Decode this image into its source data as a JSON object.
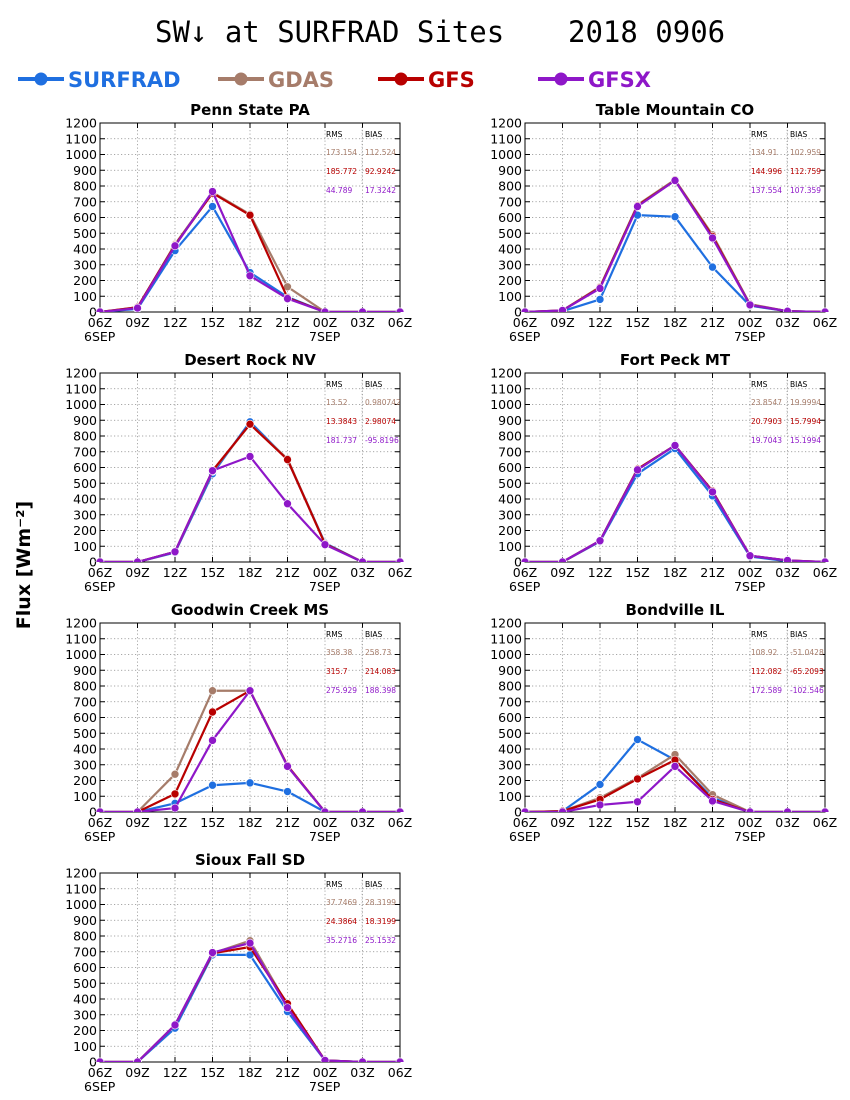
{
  "header": {
    "title": "SW↓ at SURFRAD Sites",
    "date": "2018 0906"
  },
  "legend": [
    {
      "name": "SURFRAD",
      "color": "#1f6fe0"
    },
    {
      "name": "GDAS",
      "color": "#a67c6a"
    },
    {
      "name": "GFS",
      "color": "#b80000"
    },
    {
      "name": "GFSX",
      "color": "#8e17c8"
    }
  ],
  "stats_headers": [
    "RMS",
    "BIAS"
  ],
  "chart_data": [
    {
      "type": "line",
      "title": "Penn State PA",
      "categories": [
        "06Z",
        "09Z",
        "12Z",
        "15Z",
        "18Z",
        "21Z",
        "00Z",
        "03Z",
        "06Z"
      ],
      "day_labels": [
        "6SEP",
        "7SEP"
      ],
      "ylabel": "Flux [Wm⁻²]",
      "ylim": [
        0,
        1200
      ],
      "yticks": [
        0,
        100,
        200,
        300,
        400,
        500,
        600,
        700,
        800,
        900,
        1000,
        1100,
        1200
      ],
      "grid": true,
      "series": [
        {
          "name": "SURFRAD",
          "color": "#1f6fe0",
          "values": [
            0,
            20,
            390,
            670,
            250,
            95,
            0,
            0,
            0
          ]
        },
        {
          "name": "GDAS",
          "color": "#a67c6a",
          "values": [
            0,
            30,
            430,
            760,
            620,
            160,
            0,
            0,
            0
          ]
        },
        {
          "name": "GFS",
          "color": "#b80000",
          "values": [
            0,
            30,
            425,
            755,
            615,
            90,
            0,
            0,
            0
          ]
        },
        {
          "name": "GFSX",
          "color": "#8e17c8",
          "values": [
            0,
            25,
            420,
            765,
            230,
            85,
            0,
            0,
            0
          ]
        }
      ],
      "stats": [
        {
          "series": "GDAS",
          "rms": "173.154",
          "bias": "112.524"
        },
        {
          "series": "GFS",
          "rms": "185.772",
          "bias": "92.9242"
        },
        {
          "series": "GFSX",
          "rms": "44.789",
          "bias": "17.3242"
        }
      ]
    },
    {
      "type": "line",
      "title": "Table Mountain CO",
      "categories": [
        "06Z",
        "09Z",
        "12Z",
        "15Z",
        "18Z",
        "21Z",
        "00Z",
        "03Z",
        "06Z"
      ],
      "day_labels": [
        "6SEP",
        "7SEP"
      ],
      "ylim": [
        0,
        1200
      ],
      "yticks": [
        0,
        100,
        200,
        300,
        400,
        500,
        600,
        700,
        800,
        900,
        1000,
        1100,
        1200
      ],
      "grid": true,
      "series": [
        {
          "name": "SURFRAD",
          "color": "#1f6fe0",
          "values": [
            0,
            5,
            80,
            615,
            605,
            285,
            40,
            5,
            0
          ]
        },
        {
          "name": "GDAS",
          "color": "#a67c6a",
          "values": [
            0,
            10,
            160,
            680,
            840,
            490,
            50,
            5,
            0
          ]
        },
        {
          "name": "GFS",
          "color": "#b80000",
          "values": [
            0,
            10,
            155,
            675,
            835,
            480,
            45,
            5,
            0
          ]
        },
        {
          "name": "GFSX",
          "color": "#8e17c8",
          "values": [
            0,
            10,
            150,
            670,
            835,
            470,
            45,
            5,
            0
          ]
        }
      ],
      "stats": [
        {
          "series": "GDAS",
          "rms": "134.91",
          "bias": "102.959"
        },
        {
          "series": "GFS",
          "rms": "144.996",
          "bias": "112.759"
        },
        {
          "series": "GFSX",
          "rms": "137.554",
          "bias": "107.359"
        }
      ]
    },
    {
      "type": "line",
      "title": "Desert Rock NV",
      "categories": [
        "06Z",
        "09Z",
        "12Z",
        "15Z",
        "18Z",
        "21Z",
        "00Z",
        "03Z",
        "06Z"
      ],
      "day_labels": [
        "6SEP",
        "7SEP"
      ],
      "ylim": [
        0,
        1200
      ],
      "yticks": [
        0,
        100,
        200,
        300,
        400,
        500,
        600,
        700,
        800,
        900,
        1000,
        1100,
        1200
      ],
      "grid": true,
      "series": [
        {
          "name": "SURFRAD",
          "color": "#1f6fe0",
          "values": [
            0,
            0,
            60,
            560,
            890,
            650,
            120,
            0,
            0
          ]
        },
        {
          "name": "GDAS",
          "color": "#a67c6a",
          "values": [
            0,
            0,
            65,
            575,
            875,
            655,
            115,
            0,
            0
          ]
        },
        {
          "name": "GFS",
          "color": "#b80000",
          "values": [
            0,
            0,
            65,
            580,
            875,
            650,
            115,
            0,
            0
          ]
        },
        {
          "name": "GFSX",
          "color": "#8e17c8",
          "values": [
            0,
            0,
            65,
            580,
            670,
            370,
            110,
            0,
            0
          ]
        }
      ],
      "stats": [
        {
          "series": "GDAS",
          "rms": "13.52",
          "bias": "0.980742"
        },
        {
          "series": "GFS",
          "rms": "13.3843",
          "bias": "2.98074"
        },
        {
          "series": "GFSX",
          "rms": "181.737",
          "bias": "-95.8196"
        }
      ]
    },
    {
      "type": "line",
      "title": "Fort Peck MT",
      "categories": [
        "06Z",
        "09Z",
        "12Z",
        "15Z",
        "18Z",
        "21Z",
        "00Z",
        "03Z",
        "06Z"
      ],
      "day_labels": [
        "6SEP",
        "7SEP"
      ],
      "ylim": [
        0,
        1200
      ],
      "yticks": [
        0,
        100,
        200,
        300,
        400,
        500,
        600,
        700,
        800,
        900,
        1000,
        1100,
        1200
      ],
      "grid": true,
      "series": [
        {
          "name": "SURFRAD",
          "color": "#1f6fe0",
          "values": [
            0,
            0,
            130,
            560,
            720,
            420,
            35,
            5,
            0
          ]
        },
        {
          "name": "GDAS",
          "color": "#a67c6a",
          "values": [
            0,
            0,
            135,
            590,
            740,
            450,
            40,
            10,
            0
          ]
        },
        {
          "name": "GFS",
          "color": "#b80000",
          "values": [
            0,
            0,
            135,
            590,
            740,
            450,
            40,
            10,
            0
          ]
        },
        {
          "name": "GFSX",
          "color": "#8e17c8",
          "values": [
            0,
            0,
            135,
            585,
            740,
            445,
            40,
            10,
            0
          ]
        }
      ],
      "stats": [
        {
          "series": "GDAS",
          "rms": "23.8547",
          "bias": "19.9994"
        },
        {
          "series": "GFS",
          "rms": "20.7903",
          "bias": "15.7994"
        },
        {
          "series": "GFSX",
          "rms": "19.7043",
          "bias": "15.1994"
        }
      ]
    },
    {
      "type": "line",
      "title": "Goodwin Creek MS",
      "categories": [
        "06Z",
        "09Z",
        "12Z",
        "15Z",
        "18Z",
        "21Z",
        "00Z",
        "03Z",
        "06Z"
      ],
      "day_labels": [
        "6SEP",
        "7SEP"
      ],
      "ylim": [
        0,
        1200
      ],
      "yticks": [
        0,
        100,
        200,
        300,
        400,
        500,
        600,
        700,
        800,
        900,
        1000,
        1100,
        1200
      ],
      "grid": true,
      "series": [
        {
          "name": "SURFRAD",
          "color": "#1f6fe0",
          "values": [
            0,
            0,
            55,
            170,
            185,
            130,
            0,
            0,
            0
          ]
        },
        {
          "name": "GDAS",
          "color": "#a67c6a",
          "values": [
            0,
            0,
            240,
            770,
            770,
            290,
            0,
            0,
            0
          ]
        },
        {
          "name": "GFS",
          "color": "#b80000",
          "values": [
            0,
            0,
            115,
            635,
            770,
            295,
            0,
            0,
            0
          ]
        },
        {
          "name": "GFSX",
          "color": "#8e17c8",
          "values": [
            0,
            0,
            25,
            455,
            770,
            290,
            0,
            0,
            0
          ]
        }
      ],
      "stats": [
        {
          "series": "GDAS",
          "rms": "358.38",
          "bias": "258.73"
        },
        {
          "series": "GFS",
          "rms": "315.7",
          "bias": "214.083"
        },
        {
          "series": "GFSX",
          "rms": "275.929",
          "bias": "188.398"
        }
      ]
    },
    {
      "type": "line",
      "title": "Bondville IL",
      "categories": [
        "06Z",
        "09Z",
        "12Z",
        "15Z",
        "18Z",
        "21Z",
        "00Z",
        "03Z",
        "06Z"
      ],
      "day_labels": [
        "6SEP",
        "7SEP"
      ],
      "ylim": [
        0,
        1200
      ],
      "yticks": [
        0,
        100,
        200,
        300,
        400,
        500,
        600,
        700,
        800,
        900,
        1000,
        1100,
        1200
      ],
      "grid": true,
      "series": [
        {
          "name": "SURFRAD",
          "color": "#1f6fe0",
          "values": [
            0,
            5,
            175,
            460,
            330,
            90,
            0,
            0,
            0
          ]
        },
        {
          "name": "GDAS",
          "color": "#a67c6a",
          "values": [
            0,
            5,
            90,
            215,
            365,
            110,
            0,
            0,
            0
          ]
        },
        {
          "name": "GFS",
          "color": "#b80000",
          "values": [
            0,
            5,
            80,
            210,
            330,
            80,
            0,
            0,
            0
          ]
        },
        {
          "name": "GFSX",
          "color": "#8e17c8",
          "values": [
            0,
            0,
            45,
            65,
            290,
            70,
            0,
            0,
            0
          ]
        }
      ],
      "stats": [
        {
          "series": "GDAS",
          "rms": "108.92",
          "bias": "-51.0428"
        },
        {
          "series": "GFS",
          "rms": "112.082",
          "bias": "-65.2093"
        },
        {
          "series": "GFSX",
          "rms": "172.589",
          "bias": "-102.546"
        }
      ]
    },
    {
      "type": "line",
      "title": "Sioux Fall SD",
      "categories": [
        "06Z",
        "09Z",
        "12Z",
        "15Z",
        "18Z",
        "21Z",
        "00Z",
        "03Z",
        "06Z"
      ],
      "day_labels": [
        "6SEP",
        "7SEP"
      ],
      "ylim": [
        0,
        1200
      ],
      "yticks": [
        0,
        100,
        200,
        300,
        400,
        500,
        600,
        700,
        800,
        900,
        1000,
        1100,
        1200
      ],
      "grid": true,
      "series": [
        {
          "name": "SURFRAD",
          "color": "#1f6fe0",
          "values": [
            0,
            0,
            215,
            680,
            680,
            320,
            10,
            0,
            0
          ]
        },
        {
          "name": "GDAS",
          "color": "#a67c6a",
          "values": [
            0,
            0,
            235,
            690,
            770,
            360,
            10,
            0,
            0
          ]
        },
        {
          "name": "GFS",
          "color": "#b80000",
          "values": [
            0,
            0,
            235,
            690,
            730,
            370,
            10,
            0,
            0
          ]
        },
        {
          "name": "GFSX",
          "color": "#8e17c8",
          "values": [
            0,
            0,
            235,
            695,
            755,
            345,
            10,
            0,
            0
          ]
        }
      ],
      "stats": [
        {
          "series": "GDAS",
          "rms": "37.7469",
          "bias": "28.3199"
        },
        {
          "series": "GFS",
          "rms": "24.3864",
          "bias": "18.3199"
        },
        {
          "series": "GFSX",
          "rms": "35.2716",
          "bias": "25.1532"
        }
      ]
    }
  ]
}
